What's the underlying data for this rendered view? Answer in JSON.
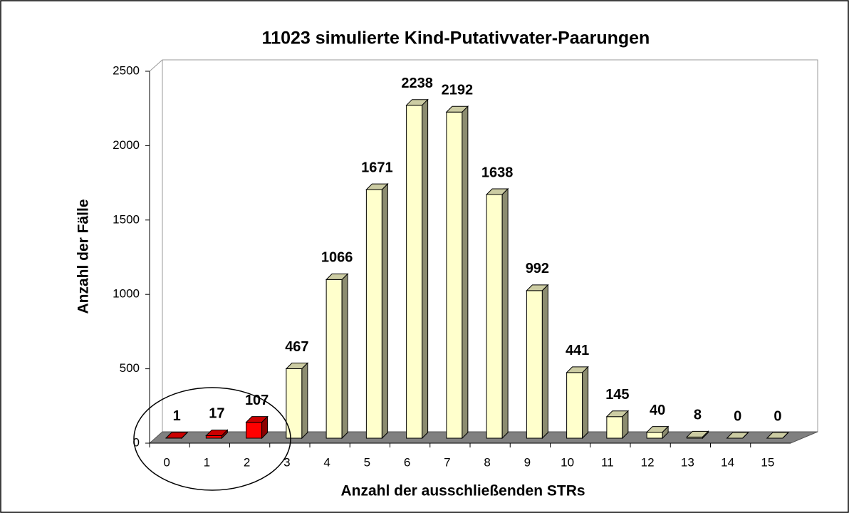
{
  "chart_data": {
    "type": "bar3d",
    "title": "11023 simulierte Kind-Putativvater-Paarungen",
    "x_label": "Anzahl der ausschließenden STRs",
    "y_label": "Anzahl der Fälle",
    "categories": [
      "0",
      "1",
      "2",
      "3",
      "4",
      "5",
      "6",
      "7",
      "8",
      "9",
      "10",
      "11",
      "12",
      "13",
      "14",
      "15"
    ],
    "values": [
      1,
      17,
      107,
      467,
      1066,
      1671,
      2238,
      2192,
      1638,
      992,
      441,
      145,
      40,
      8,
      0,
      0
    ],
    "colors": [
      "#ff0000",
      "#ff0000",
      "#ff0000",
      "#ffffcc",
      "#ffffcc",
      "#ffffcc",
      "#ffffcc",
      "#ffffcc",
      "#ffffcc",
      "#ffffcc",
      "#ffffcc",
      "#ffffcc",
      "#ffffcc",
      "#ffffcc",
      "#ffffcc",
      "#ffffcc"
    ],
    "ylim": [
      0,
      2500
    ],
    "yticks": [
      0,
      500,
      1000,
      1500,
      2000,
      2500
    ]
  }
}
